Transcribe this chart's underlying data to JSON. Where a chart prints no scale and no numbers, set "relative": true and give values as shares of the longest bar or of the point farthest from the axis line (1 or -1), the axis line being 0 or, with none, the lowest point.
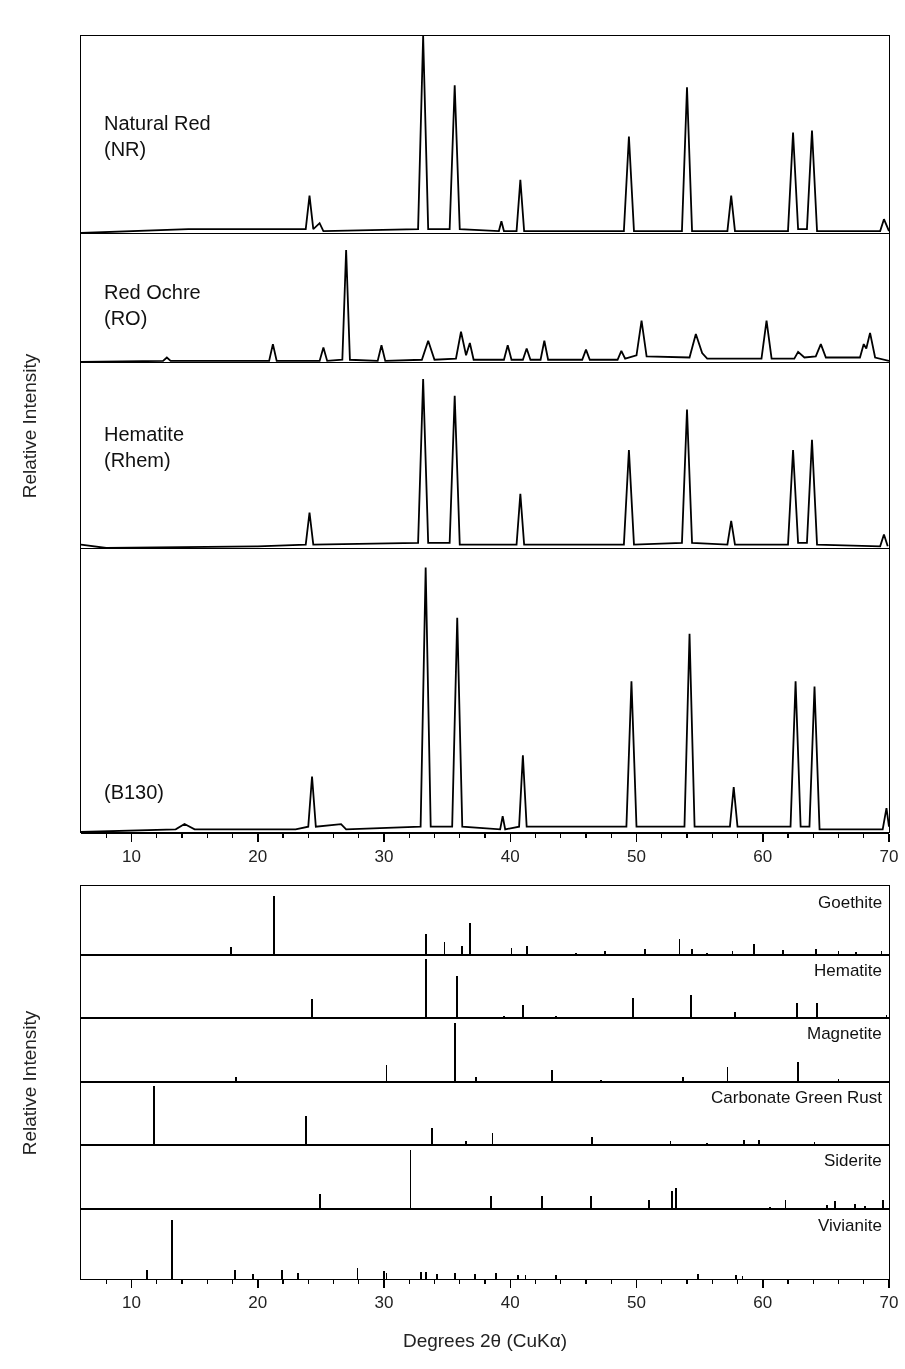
{
  "chart_data": [
    {
      "type": "line",
      "relative": true,
      "xlim": [
        6,
        70
      ],
      "tick_labels": false,
      "xticks": [
        10,
        20,
        30,
        40,
        50,
        60,
        70
      ],
      "series": [
        {
          "name": "Natural Red\n(NR)",
          "color": "#000000",
          "x": [
            6,
            14.5,
            22,
            23.8,
            24.1,
            24.4,
            24.9,
            25.2,
            32.7,
            33.1,
            33.5,
            35.2,
            35.6,
            36.0,
            39.1,
            39.3,
            39.5,
            40.5,
            40.8,
            41.1,
            49.0,
            49.4,
            49.8,
            53.6,
            54.0,
            54.4,
            57.2,
            57.5,
            57.8,
            62.0,
            62.4,
            62.8,
            63.5,
            63.9,
            64.3,
            69.3,
            69.6,
            70
          ],
          "values": [
            0,
            0.02,
            0.02,
            0.02,
            0.19,
            0.02,
            0.05,
            0.01,
            0.02,
            1,
            0.02,
            0.02,
            0.75,
            0.02,
            0.01,
            0.06,
            0.01,
            0.01,
            0.27,
            0.01,
            0.01,
            0.49,
            0.01,
            0.01,
            0.74,
            0.01,
            0.01,
            0.19,
            0.01,
            0.01,
            0.51,
            0.02,
            0.02,
            0.52,
            0.01,
            0.01,
            0.07,
            0.01
          ]
        }
      ]
    },
    {
      "type": "line",
      "relative": true,
      "xlim": [
        6,
        70
      ],
      "tick_labels": false,
      "xticks": [
        10,
        20,
        30,
        40,
        50,
        60,
        70
      ],
      "series": [
        {
          "name": "Red Ochre\n(RO)",
          "color": "#000000",
          "x": [
            6,
            12.5,
            12.8,
            13.1,
            20.9,
            21.2,
            21.5,
            24.9,
            25.2,
            25.5,
            26.7,
            27.0,
            27.3,
            29.5,
            29.8,
            30.1,
            33.0,
            33.5,
            34.0,
            35.7,
            36.1,
            36.5,
            36.8,
            37.1,
            39.5,
            39.8,
            40.1,
            41.0,
            41.3,
            41.6,
            42.4,
            42.7,
            43.0,
            45.7,
            46.0,
            46.3,
            48.5,
            48.8,
            49.1,
            50.0,
            50.4,
            50.8,
            54.2,
            54.7,
            55.2,
            55.6,
            59.9,
            60.3,
            60.7,
            62.5,
            62.8,
            63.3,
            64.2,
            64.6,
            65.0,
            67.7,
            68.0,
            68.2,
            68.5,
            68.9,
            70
          ],
          "values": [
            0,
            0.01,
            0.04,
            0.01,
            0.01,
            0.16,
            0.01,
            0.01,
            0.13,
            0.01,
            0.02,
            1,
            0.02,
            0.01,
            0.15,
            0.01,
            0.02,
            0.19,
            0.02,
            0.03,
            0.27,
            0.06,
            0.17,
            0.02,
            0.02,
            0.15,
            0.02,
            0.02,
            0.12,
            0.02,
            0.02,
            0.19,
            0.02,
            0.02,
            0.11,
            0.02,
            0.02,
            0.1,
            0.03,
            0.06,
            0.37,
            0.05,
            0.04,
            0.25,
            0.08,
            0.03,
            0.03,
            0.37,
            0.03,
            0.03,
            0.09,
            0.04,
            0.05,
            0.16,
            0.04,
            0.04,
            0.16,
            0.12,
            0.26,
            0.04,
            0.01
          ]
        }
      ]
    },
    {
      "type": "line",
      "relative": true,
      "xlim": [
        6,
        70
      ],
      "tick_labels": false,
      "xticks": [
        10,
        20,
        30,
        40,
        50,
        60,
        70
      ],
      "ylabel": "Relative Intensity",
      "series": [
        {
          "name": "Hematite\n(Rhem)",
          "color": "#000000",
          "x": [
            6,
            8,
            20,
            23.8,
            24.1,
            24.4,
            32.7,
            33.1,
            33.5,
            35.2,
            35.6,
            36.0,
            40.5,
            40.8,
            41.1,
            49.0,
            49.4,
            49.8,
            53.6,
            54.0,
            54.4,
            57.2,
            57.5,
            57.8,
            62.0,
            62.4,
            62.8,
            63.5,
            63.9,
            64.3,
            69.3,
            69.6,
            69.9
          ],
          "values": [
            0.02,
            0,
            0.01,
            0.02,
            0.21,
            0.02,
            0.03,
            1,
            0.03,
            0.03,
            0.9,
            0.02,
            0.02,
            0.32,
            0.02,
            0.02,
            0.58,
            0.02,
            0.03,
            0.82,
            0.03,
            0.02,
            0.16,
            0.02,
            0.02,
            0.58,
            0.03,
            0.03,
            0.64,
            0.02,
            0.01,
            0.08,
            0.01
          ]
        }
      ]
    },
    {
      "type": "line",
      "relative": true,
      "xlim": [
        6,
        70
      ],
      "tick_labels": "x",
      "xticks": [
        {
          "value": 8,
          "label": null
        },
        10,
        {
          "value": 12,
          "label": null
        },
        {
          "value": 14,
          "label": null
        },
        {
          "value": 16,
          "label": null
        },
        {
          "value": 18,
          "label": null
        },
        20,
        {
          "value": 22,
          "label": null
        },
        {
          "value": 24,
          "label": null
        },
        {
          "value": 26,
          "label": null
        },
        {
          "value": 28,
          "label": null
        },
        30,
        {
          "value": 32,
          "label": null
        },
        {
          "value": 34,
          "label": null
        },
        {
          "value": 36,
          "label": null
        },
        {
          "value": 38,
          "label": null
        },
        40,
        {
          "value": 42,
          "label": null
        },
        {
          "value": 44,
          "label": null
        },
        {
          "value": 46,
          "label": null
        },
        {
          "value": 48,
          "label": null
        },
        50,
        {
          "value": 52,
          "label": null
        },
        {
          "value": 54,
          "label": null
        },
        {
          "value": 56,
          "label": null
        },
        {
          "value": 58,
          "label": null
        },
        60,
        {
          "value": 62,
          "label": null
        },
        {
          "value": 64,
          "label": null
        },
        {
          "value": 66,
          "label": null
        },
        {
          "value": 68,
          "label": null
        },
        70
      ],
      "series": [
        {
          "name": "(B130)",
          "color": "#000000",
          "x": [
            6,
            13.5,
            14.2,
            15,
            23,
            24.0,
            24.3,
            24.6,
            26.6,
            27,
            32.9,
            33.3,
            33.7,
            35.4,
            35.8,
            36.2,
            39.2,
            39.4,
            39.6,
            40.7,
            41.0,
            41.3,
            49.2,
            49.6,
            50.0,
            53.8,
            54.2,
            54.6,
            57.4,
            57.7,
            58.0,
            62.2,
            62.6,
            63.0,
            63.7,
            64.1,
            64.5,
            69.5,
            69.8,
            70
          ],
          "values": [
            0,
            0.01,
            0.03,
            0.01,
            0.01,
            0.02,
            0.21,
            0.02,
            0.03,
            0.01,
            0.02,
            1,
            0.02,
            0.02,
            0.81,
            0.02,
            0.01,
            0.06,
            0.01,
            0.02,
            0.29,
            0.02,
            0.02,
            0.57,
            0.02,
            0.02,
            0.75,
            0.02,
            0.02,
            0.17,
            0.02,
            0.02,
            0.57,
            0.02,
            0.02,
            0.55,
            0.01,
            0.01,
            0.09,
            0.02
          ]
        }
      ]
    },
    {
      "type": "bar",
      "relative": true,
      "xlim": [
        6,
        70
      ],
      "tick_labels": false,
      "series": [
        {
          "name": "Goethite",
          "color": "#000000",
          "x": [
            17.9,
            21.3,
            33.3,
            34.8,
            36.2,
            36.8,
            40.1,
            41.3,
            45.2,
            47.5,
            50.7,
            53.4,
            54.4,
            55.6,
            57.6,
            59.3,
            61.6,
            64.2,
            66.0,
            67.4,
            69.4
          ],
          "values": [
            0.14,
            1,
            0.36,
            0.22,
            0.15,
            0.54,
            0.12,
            0.15,
            0.04,
            0.06,
            0.1,
            0.27,
            0.11,
            0.03,
            0.07,
            0.18,
            0.09,
            0.1,
            0.06,
            0.05,
            0.07
          ]
        }
      ]
    },
    {
      "type": "bar",
      "relative": true,
      "xlim": [
        6,
        70
      ],
      "tick_labels": false,
      "series": [
        {
          "name": "Hematite",
          "color": "#000000",
          "x": [
            24.3,
            33.3,
            35.8,
            39.5,
            41.0,
            43.6,
            49.7,
            54.3,
            57.8,
            62.7,
            64.3,
            69.8
          ],
          "values": [
            0.33,
            1,
            0.72,
            0.04,
            0.22,
            0.03,
            0.34,
            0.39,
            0.1,
            0.25,
            0.25,
            0.05
          ]
        }
      ]
    },
    {
      "type": "bar",
      "relative": true,
      "xlim": [
        6,
        70
      ],
      "tick_labels": false,
      "series": [
        {
          "name": "Magnetite",
          "color": "#000000",
          "x": [
            18.3,
            30.2,
            35.6,
            37.3,
            43.3,
            47.2,
            53.7,
            57.2,
            62.8,
            66.0
          ],
          "values": [
            0.08,
            0.29,
            1,
            0.08,
            0.2,
            0.03,
            0.08,
            0.25,
            0.34,
            0.05
          ]
        }
      ]
    },
    {
      "type": "bar",
      "relative": true,
      "xlim": [
        6,
        70
      ],
      "tick_labels": false,
      "ylabel": "Relative Intensity",
      "series": [
        {
          "name": "Carbonate Green Rust",
          "color": "#000000",
          "x": [
            11.8,
            23.8,
            33.8,
            36.5,
            38.6,
            46.5,
            52.7,
            55.6,
            58.5,
            59.7,
            64.1
          ],
          "values": [
            1,
            0.49,
            0.29,
            0.06,
            0.2,
            0.14,
            0.07,
            0.03,
            0.08,
            0.08,
            0.05
          ]
        }
      ]
    },
    {
      "type": "bar",
      "relative": true,
      "xlim": [
        6,
        70
      ],
      "tick_labels": false,
      "series": [
        {
          "name": "Siderite",
          "color": "#000000",
          "x": [
            24.9,
            32.1,
            38.5,
            42.5,
            46.4,
            51.0,
            52.8,
            53.1,
            60.6,
            61.8,
            65.1,
            65.7,
            67.3,
            68.1,
            69.5
          ],
          "values": [
            0.26,
            1,
            0.22,
            0.22,
            0.22,
            0.15,
            0.31,
            0.36,
            0.04,
            0.16,
            0.06,
            0.14,
            0.08,
            0.05,
            0.15
          ]
        }
      ]
    },
    {
      "type": "bar",
      "relative": true,
      "xlim": [
        6,
        70
      ],
      "tick_labels": "x",
      "xlabel": "Degrees 2θ (CuKα)",
      "xticks": [
        {
          "value": 8,
          "label": null
        },
        10,
        {
          "value": 12,
          "label": null
        },
        {
          "value": 14,
          "label": null
        },
        {
          "value": 16,
          "label": null
        },
        {
          "value": 18,
          "label": null
        },
        20,
        {
          "value": 22,
          "label": null
        },
        {
          "value": 24,
          "label": null
        },
        {
          "value": 26,
          "label": null
        },
        {
          "value": 28,
          "label": null
        },
        30,
        {
          "value": 32,
          "label": null
        },
        {
          "value": 34,
          "label": null
        },
        {
          "value": 36,
          "label": null
        },
        {
          "value": 38,
          "label": null
        },
        40,
        {
          "value": 42,
          "label": null
        },
        {
          "value": 44,
          "label": null
        },
        {
          "value": 46,
          "label": null
        },
        {
          "value": 48,
          "label": null
        },
        50,
        {
          "value": 52,
          "label": null
        },
        {
          "value": 54,
          "label": null
        },
        {
          "value": 56,
          "label": null
        },
        {
          "value": 58,
          "label": null
        },
        60,
        {
          "value": 62,
          "label": null
        },
        {
          "value": 64,
          "label": null
        },
        {
          "value": 66,
          "label": null
        },
        {
          "value": 68,
          "label": null
        },
        70
      ],
      "series": [
        {
          "name": "Vivianite",
          "color": "#000000",
          "x": [
            11.2,
            13.2,
            18.2,
            19.6,
            21.9,
            23.2,
            27.9,
            30.0,
            30.2,
            32.9,
            33.3,
            34.2,
            35.6,
            37.2,
            38.9,
            40.6,
            41.2,
            43.6,
            54.9,
            57.9,
            58.4
          ],
          "values": [
            0.16,
            1,
            0.15,
            0.08,
            0.15,
            0.1,
            0.18,
            0.14,
            0.11,
            0.12,
            0.12,
            0.09,
            0.11,
            0.09,
            0.1,
            0.07,
            0.06,
            0.06,
            0.09,
            0.07,
            0.05
          ]
        }
      ]
    }
  ]
}
